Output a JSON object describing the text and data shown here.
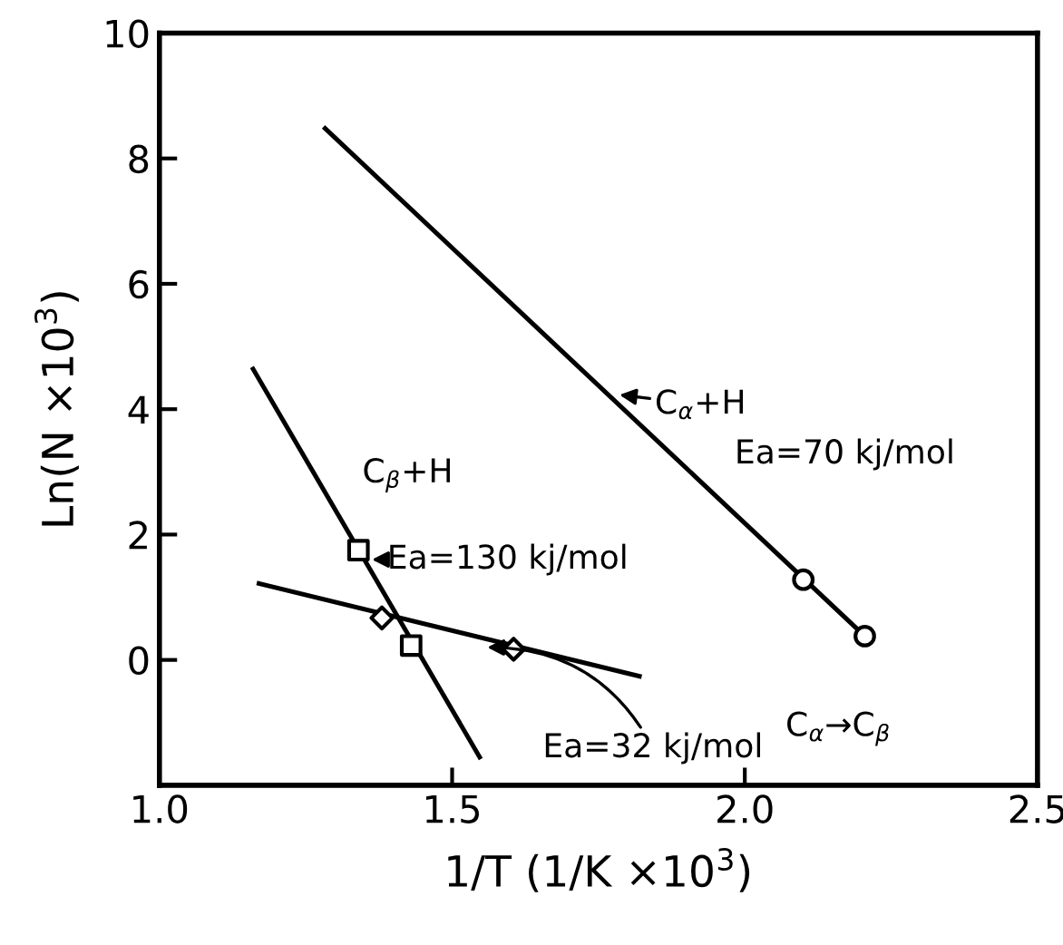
{
  "chart_data": {
    "type": "line",
    "xlabel": "1/T (1/K ×10$^{3}$)",
    "ylabel": "Ln(N ×10$^{3}$)",
    "xlim": [
      1.0,
      2.5
    ],
    "xticks": [
      {
        "value": 1.0,
        "label": "1.0"
      },
      1.5,
      {
        "value": 2.0,
        "label": "2.0"
      },
      2.5
    ],
    "ylim": [
      -2,
      10
    ],
    "yticks": [
      {
        "value": -2,
        "label": null
      },
      0,
      2,
      4,
      6,
      8,
      10
    ],
    "grid": false,
    "legend": false,
    "series": [
      {
        "type": "line",
        "x": [
          1.283,
          2.205
        ],
        "values": [
          8.48,
          0.38
        ],
        "color": "#000000",
        "marker": "none",
        "line_style": "solid"
      },
      {
        "type": "scatter",
        "x": [
          2.1,
          2.205
        ],
        "values": [
          1.28,
          0.38
        ],
        "color": "#000000",
        "marker": "circle"
      },
      {
        "type": "line",
        "x": [
          1.16,
          1.547
        ],
        "values": [
          4.64,
          -1.55
        ],
        "color": "#000000",
        "marker": "none",
        "line_style": "solid"
      },
      {
        "type": "scatter",
        "x": [
          1.34,
          1.43
        ],
        "values": [
          1.75,
          0.23
        ],
        "color": "#000000",
        "marker": "square"
      },
      {
        "type": "line",
        "x": [
          1.17,
          1.82
        ],
        "values": [
          1.22,
          -0.26
        ],
        "color": "#000000",
        "marker": "none",
        "line_style": "solid"
      },
      {
        "type": "scatter",
        "x": [
          1.38,
          1.605
        ],
        "values": [
          0.67,
          0.17
        ],
        "color": "#000000",
        "marker": "diamond"
      }
    ],
    "annotations": [
      {
        "text": "C$_{α}$+H",
        "x": 1.786,
        "y": 4.23
      },
      "Ea=70 kj/mol",
      "C$_{β}$+H",
      {
        "text": "Ea=130 kj/mol",
        "x": 1.363,
        "y": 1.6
      },
      {
        "text": "Ea=32 kj/mol",
        "x": 1.56,
        "y": 0.2
      },
      "C$_{α}$→C$_{β}$"
    ]
  }
}
